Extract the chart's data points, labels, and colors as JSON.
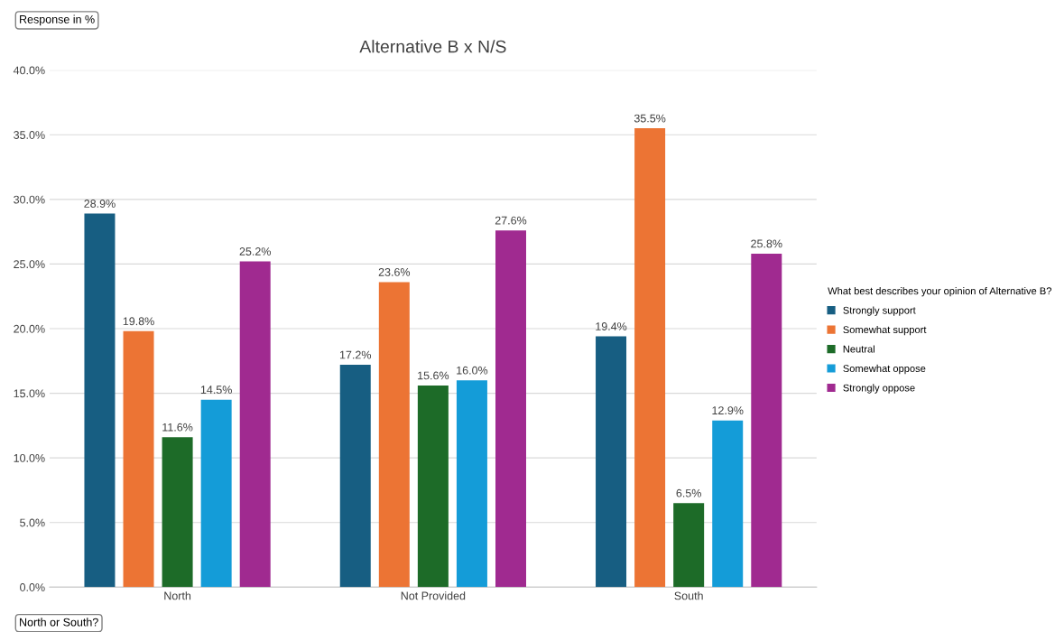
{
  "chart_data": {
    "type": "bar",
    "title": "Alternative B x N/S",
    "ylabel": "Response in %",
    "xlabel": "North or South?",
    "legend_title": "What best describes your opinion of Alternative B?",
    "categories": [
      "North",
      "Not Provided",
      "South"
    ],
    "series": [
      {
        "name": "Strongly support",
        "color": "#175e82",
        "values": [
          28.9,
          17.2,
          19.4
        ],
        "value_labels": [
          "28.9%",
          "17.2%",
          "19.4%"
        ]
      },
      {
        "name": "Somewhat support",
        "color": "#ec7434",
        "values": [
          19.8,
          23.6,
          35.5
        ],
        "value_labels": [
          "19.8%",
          "23.6%",
          "35.5%"
        ]
      },
      {
        "name": "Neutral",
        "color": "#1d6b28",
        "values": [
          11.6,
          15.6,
          6.5
        ],
        "value_labels": [
          "11.6%",
          "15.6%",
          "6.5%"
        ]
      },
      {
        "name": "Somewhat oppose",
        "color": "#149cd8",
        "values": [
          14.5,
          16.0,
          12.9
        ],
        "value_labels": [
          "14.5%",
          "16.0%",
          "12.9%"
        ]
      },
      {
        "name": "Strongly oppose",
        "color": "#a02a90",
        "values": [
          25.2,
          27.6,
          25.8
        ],
        "value_labels": [
          "25.2%",
          "27.6%",
          "25.8%"
        ]
      }
    ],
    "ylim": [
      0,
      40
    ],
    "yticks": [
      {
        "value": 0,
        "label": "0.0%"
      },
      {
        "value": 5,
        "label": "5.0%"
      },
      {
        "value": 10,
        "label": "10.0%"
      },
      {
        "value": 15,
        "label": "15.0%"
      },
      {
        "value": 20,
        "label": "20.0%"
      },
      {
        "value": 25,
        "label": "25.0%"
      },
      {
        "value": 30,
        "label": "30.0%"
      },
      {
        "value": 35,
        "label": "35.0%"
      },
      {
        "value": 40,
        "label": "40.0%"
      }
    ],
    "grid": "y",
    "legend": "right"
  }
}
